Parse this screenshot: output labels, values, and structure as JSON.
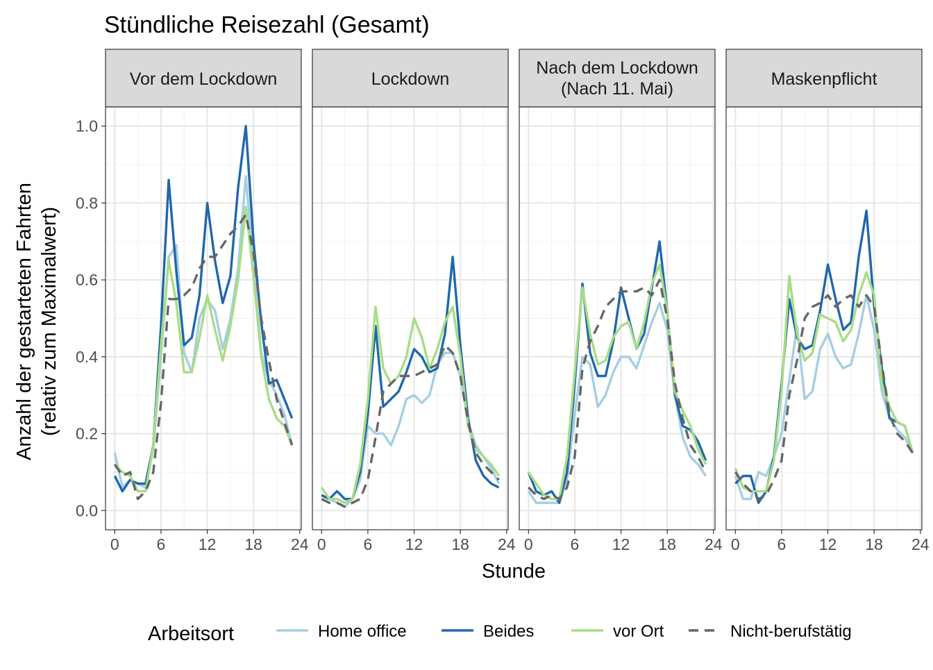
{
  "chart_data": {
    "type": "line",
    "title": "Stündliche Reisezahl (Gesamt)",
    "xlabel": "Stunde",
    "ylabel_line1": "Anzahl der gestarteten Fahrten",
    "ylabel_line2": "(relativ zum Maximalwert)",
    "xlim": [
      -1.2,
      24.2
    ],
    "ylim": [
      -0.05,
      1.05
    ],
    "x_ticks": [
      0,
      6,
      12,
      18,
      24
    ],
    "x_tick_labels": [
      "0",
      "6",
      "12",
      "18",
      "24"
    ],
    "y_ticks": [
      0.0,
      0.2,
      0.4,
      0.6,
      0.8,
      1.0
    ],
    "y_tick_labels": [
      "0.0",
      "0.2",
      "0.4",
      "0.6",
      "0.8",
      "1.0"
    ],
    "grid": true,
    "legend_position": "bottom",
    "legend_title": "Arbeitsort",
    "series_styles": [
      {
        "name": "Home office",
        "color": "#a6cee3",
        "dashed": false
      },
      {
        "name": "Beides",
        "color": "#1f68ac",
        "dashed": false
      },
      {
        "name": "vor Ort",
        "color": "#a8dd85",
        "dashed": false
      },
      {
        "name": "Nicht-berufstätig",
        "color": "#666666",
        "dashed": true
      }
    ],
    "x": [
      0,
      1,
      2,
      3,
      4,
      5,
      6,
      7,
      8,
      9,
      10,
      11,
      12,
      13,
      14,
      15,
      16,
      17,
      18,
      19,
      20,
      21,
      22,
      23
    ],
    "panels": [
      {
        "label_lines": [
          "Vor dem Lockdown"
        ],
        "series": [
          {
            "name": "Home office",
            "values": [
              0.15,
              0.06,
              0.08,
              0.07,
              0.06,
              0.16,
              0.4,
              0.66,
              0.69,
              0.41,
              0.36,
              0.5,
              0.55,
              0.52,
              0.42,
              0.5,
              0.63,
              0.87,
              0.64,
              0.41,
              0.34,
              0.3,
              0.25,
              0.17
            ]
          },
          {
            "name": "Beides",
            "values": [
              0.09,
              0.05,
              0.08,
              0.07,
              0.07,
              0.17,
              0.48,
              0.86,
              0.62,
              0.43,
              0.45,
              0.56,
              0.8,
              0.65,
              0.54,
              0.61,
              0.84,
              1.0,
              0.7,
              0.49,
              0.33,
              0.34,
              0.29,
              0.24
            ]
          },
          {
            "name": "vor Ort",
            "values": [
              0.12,
              0.1,
              0.09,
              0.05,
              0.05,
              0.17,
              0.43,
              0.65,
              0.54,
              0.36,
              0.36,
              0.45,
              0.56,
              0.47,
              0.39,
              0.48,
              0.6,
              0.79,
              0.61,
              0.4,
              0.29,
              0.24,
              0.22,
              0.17
            ]
          },
          {
            "name": "Nicht-berufstätig",
            "values": [
              0.12,
              0.09,
              0.1,
              0.03,
              0.05,
              0.1,
              0.28,
              0.55,
              0.55,
              0.56,
              0.58,
              0.63,
              0.66,
              0.66,
              0.69,
              0.72,
              0.74,
              0.77,
              0.67,
              0.5,
              0.39,
              0.29,
              0.23,
              0.17
            ]
          }
        ]
      },
      {
        "label_lines": [
          "Lockdown"
        ],
        "series": [
          {
            "name": "Home office",
            "values": [
              0.04,
              0.03,
              0.02,
              0.01,
              0.03,
              0.08,
              0.22,
              0.2,
              0.2,
              0.17,
              0.22,
              0.29,
              0.3,
              0.28,
              0.3,
              0.38,
              0.41,
              0.41,
              0.35,
              0.23,
              0.17,
              0.14,
              0.11,
              0.07
            ]
          },
          {
            "name": "Beides",
            "values": [
              0.04,
              0.03,
              0.05,
              0.03,
              0.03,
              0.1,
              0.25,
              0.48,
              0.27,
              0.29,
              0.31,
              0.36,
              0.42,
              0.4,
              0.36,
              0.37,
              0.46,
              0.66,
              0.43,
              0.24,
              0.13,
              0.09,
              0.07,
              0.06
            ]
          },
          {
            "name": "vor Ort",
            "values": [
              0.06,
              0.03,
              0.03,
              0.02,
              0.03,
              0.12,
              0.29,
              0.53,
              0.37,
              0.33,
              0.35,
              0.4,
              0.5,
              0.45,
              0.37,
              0.42,
              0.49,
              0.53,
              0.4,
              0.22,
              0.16,
              0.14,
              0.12,
              0.09
            ]
          },
          {
            "name": "Nicht-berufstätig",
            "values": [
              0.03,
              0.02,
              0.02,
              0.01,
              0.02,
              0.03,
              0.08,
              0.19,
              0.31,
              0.33,
              0.35,
              0.35,
              0.35,
              0.36,
              0.37,
              0.38,
              0.43,
              0.41,
              0.35,
              0.23,
              0.15,
              0.12,
              0.1,
              0.08
            ]
          }
        ]
      },
      {
        "label_lines": [
          "Nach dem Lockdown",
          "(Nach 11. Mai)"
        ],
        "series": [
          {
            "name": "Home office",
            "values": [
              0.05,
              0.02,
              0.02,
              0.02,
              0.02,
              0.08,
              0.25,
              0.4,
              0.38,
              0.27,
              0.3,
              0.36,
              0.4,
              0.4,
              0.37,
              0.43,
              0.49,
              0.54,
              0.47,
              0.3,
              0.19,
              0.14,
              0.12,
              0.09
            ]
          },
          {
            "name": "Beides",
            "values": [
              0.1,
              0.05,
              0.04,
              0.05,
              0.02,
              0.1,
              0.33,
              0.59,
              0.41,
              0.35,
              0.35,
              0.44,
              0.58,
              0.5,
              0.42,
              0.46,
              0.58,
              0.7,
              0.52,
              0.3,
              0.22,
              0.21,
              0.18,
              0.13
            ]
          },
          {
            "name": "vor Ort",
            "values": [
              0.1,
              0.07,
              0.04,
              0.03,
              0.03,
              0.14,
              0.36,
              0.58,
              0.46,
              0.38,
              0.39,
              0.45,
              0.48,
              0.49,
              0.42,
              0.49,
              0.59,
              0.64,
              0.52,
              0.31,
              0.26,
              0.22,
              0.16,
              0.12
            ]
          },
          {
            "name": "Nicht-berufstätig",
            "values": [
              0.06,
              0.04,
              0.03,
              0.04,
              0.03,
              0.06,
              0.14,
              0.37,
              0.44,
              0.48,
              0.53,
              0.55,
              0.57,
              0.57,
              0.57,
              0.58,
              0.56,
              0.6,
              0.5,
              0.33,
              0.24,
              0.17,
              0.14,
              0.1
            ]
          }
        ]
      },
      {
        "label_lines": [
          "Maskenpflicht"
        ],
        "series": [
          {
            "name": "Home office",
            "values": [
              0.09,
              0.03,
              0.03,
              0.1,
              0.09,
              0.14,
              0.2,
              0.34,
              0.48,
              0.29,
              0.31,
              0.42,
              0.46,
              0.4,
              0.37,
              0.38,
              0.46,
              0.56,
              0.47,
              0.31,
              0.24,
              0.21,
              0.19,
              0.15
            ]
          },
          {
            "name": "Beides",
            "values": [
              0.07,
              0.09,
              0.09,
              0.02,
              0.05,
              0.14,
              0.33,
              0.55,
              0.45,
              0.42,
              0.43,
              0.52,
              0.64,
              0.55,
              0.47,
              0.49,
              0.66,
              0.78,
              0.53,
              0.37,
              0.24,
              0.23,
              0.22,
              0.15
            ]
          },
          {
            "name": "vor Ort",
            "values": [
              0.11,
              0.06,
              0.05,
              0.05,
              0.05,
              0.13,
              0.31,
              0.61,
              0.46,
              0.39,
              0.41,
              0.51,
              0.5,
              0.49,
              0.44,
              0.47,
              0.56,
              0.62,
              0.56,
              0.33,
              0.27,
              0.23,
              0.22,
              0.15
            ]
          },
          {
            "name": "Nicht-berufstätig",
            "values": [
              0.1,
              0.07,
              0.05,
              0.03,
              0.04,
              0.08,
              0.13,
              0.3,
              0.39,
              0.5,
              0.53,
              0.54,
              0.56,
              0.53,
              0.55,
              0.56,
              0.53,
              0.56,
              0.53,
              0.38,
              0.25,
              0.2,
              0.18,
              0.15
            ]
          }
        ]
      }
    ]
  }
}
